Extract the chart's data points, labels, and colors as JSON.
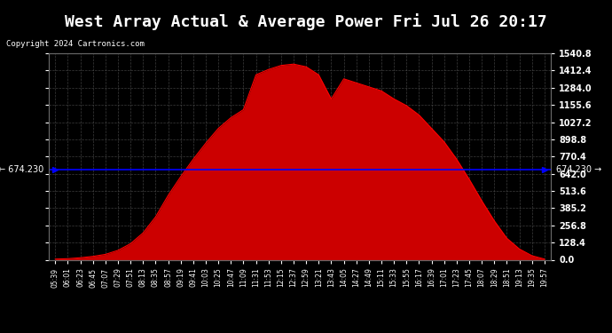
{
  "title": "West Array Actual & Average Power Fri Jul 26 20:17",
  "copyright": "Copyright 2024 Cartronics.com",
  "avg_value": 674.23,
  "ymax": 1540.8,
  "ymin": 0.0,
  "yticks": [
    0.0,
    128.4,
    256.8,
    385.2,
    513.6,
    642.0,
    770.4,
    898.8,
    1027.2,
    1155.6,
    1284.0,
    1412.4,
    1540.8
  ],
  "bg_color": "#000000",
  "plot_bg": "#000000",
  "grid_color": "#555555",
  "fill_color": "#cc0000",
  "line_color": "#ff0000",
  "avg_line_color": "#0000ff",
  "title_color": "#ffffff",
  "label_color": "#ffffff",
  "avg_legend_color": "#0000ff",
  "west_legend_color": "#ff0000",
  "xtick_labels": [
    "05:39",
    "06:01",
    "06:23",
    "06:45",
    "07:07",
    "07:29",
    "07:51",
    "08:13",
    "08:35",
    "08:57",
    "09:19",
    "09:41",
    "10:03",
    "10:25",
    "10:47",
    "11:09",
    "11:31",
    "11:53",
    "12:15",
    "12:37",
    "12:59",
    "13:21",
    "13:43",
    "14:05",
    "14:27",
    "14:49",
    "15:11",
    "15:33",
    "15:55",
    "16:17",
    "16:39",
    "17:01",
    "17:23",
    "17:45",
    "18:07",
    "18:29",
    "18:51",
    "19:13",
    "19:35",
    "19:57"
  ],
  "west_array_values": [
    5,
    8,
    15,
    25,
    40,
    70,
    120,
    200,
    320,
    480,
    620,
    750,
    870,
    980,
    1060,
    1120,
    1380,
    1420,
    1450,
    1460,
    1440,
    1380,
    1200,
    1350,
    1320,
    1290,
    1260,
    1200,
    1150,
    1080,
    980,
    880,
    750,
    600,
    440,
    290,
    160,
    80,
    30,
    5
  ]
}
